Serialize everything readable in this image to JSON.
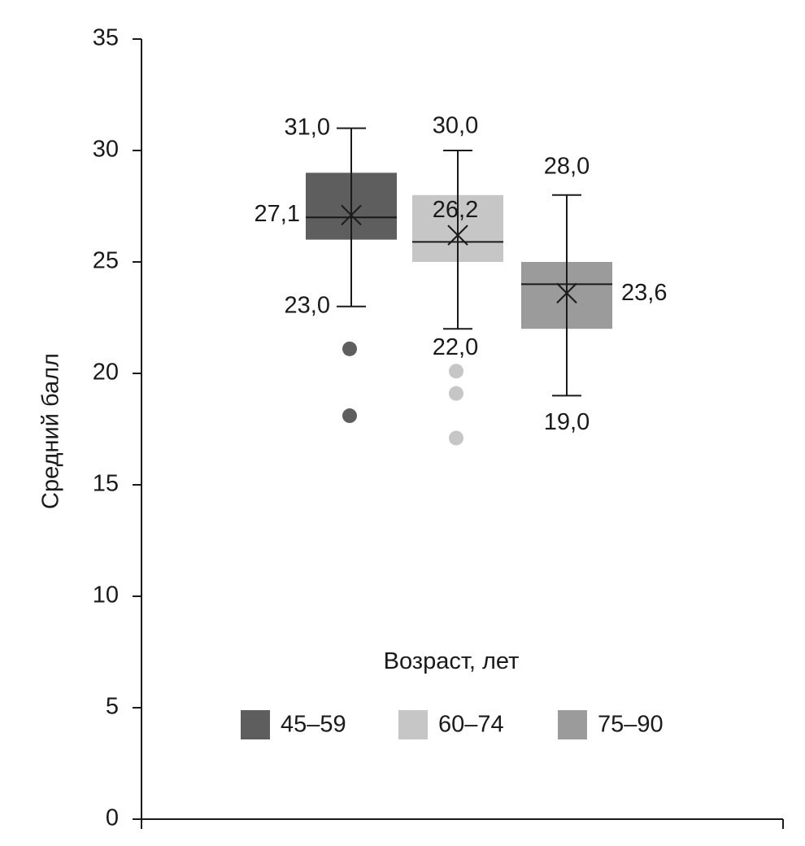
{
  "chart_data": {
    "type": "box",
    "ylabel": "Средний балл",
    "ylim": [
      0,
      35
    ],
    "yticks": [
      0,
      5,
      10,
      15,
      20,
      25,
      30,
      35
    ],
    "legend_title": "Возраст, лет",
    "series": [
      {
        "name": "45–59",
        "color": "#5e5e5e",
        "min": 23.0,
        "q1": 26.0,
        "median": 27.0,
        "q3": 29.0,
        "max": 31.0,
        "mean": 27.1,
        "outliers": [
          21.1,
          18.1
        ],
        "labels": {
          "max": "31,0",
          "min": "23,0",
          "mean": "27,1"
        }
      },
      {
        "name": "60–74",
        "color": "#c6c6c6",
        "min": 22.0,
        "q1": 25.0,
        "median": 25.9,
        "q3": 28.0,
        "max": 30.0,
        "mean": 26.2,
        "outliers": [
          20.1,
          19.1,
          17.1
        ],
        "labels": {
          "max": "30,0",
          "min": "22,0",
          "mean": "26,2"
        }
      },
      {
        "name": "75–90",
        "color": "#9b9b9b",
        "min": 19.0,
        "q1": 22.0,
        "median": 24.0,
        "q3": 25.0,
        "max": 28.0,
        "mean": 23.6,
        "outliers": [],
        "labels": {
          "max": "28,0",
          "min": "19,0",
          "mean": "23,6"
        }
      }
    ]
  }
}
